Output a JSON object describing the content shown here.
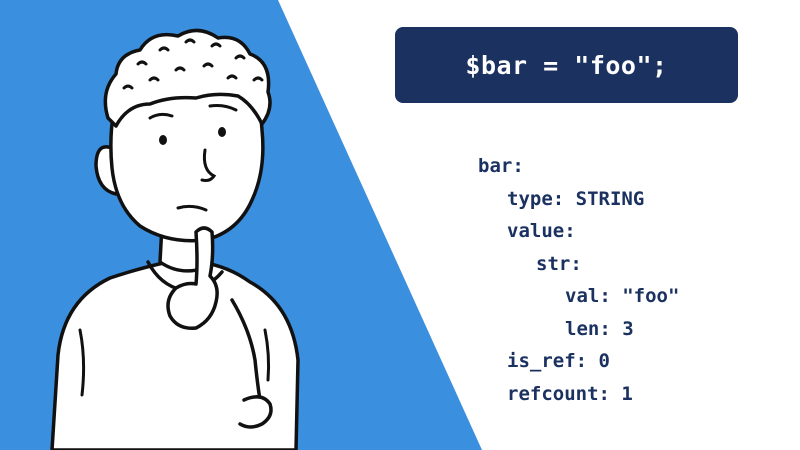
{
  "colors": {
    "background": "#ffffff",
    "accent_blue": "#3a8fdf",
    "navy": "#1b3261",
    "banner_text": "#ffffff",
    "outline": "#111111"
  },
  "banner": {
    "code": "$bar = \"foo\";"
  },
  "zval_tree": [
    {
      "text": "bar:",
      "level": 0
    },
    {
      "text": "type: STRING",
      "level": 1
    },
    {
      "text": "value:",
      "level": 1
    },
    {
      "text": "str:",
      "level": 2
    },
    {
      "text": "val: \"foo\"",
      "level": 3
    },
    {
      "text": "len: 3",
      "level": 3
    },
    {
      "text": "is_ref: 0",
      "level": 1
    },
    {
      "text": "refcount: 1",
      "level": 1
    }
  ],
  "illustration": {
    "subject": "thinking-person-icon"
  }
}
